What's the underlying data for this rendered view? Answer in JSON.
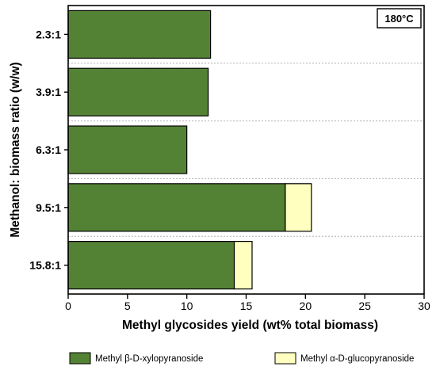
{
  "chart_data": {
    "type": "bar",
    "orientation": "horizontal",
    "stacked": true,
    "annotation": "180°C",
    "xlabel": "Methyl glycosides yield (wt% total biomass)",
    "ylabel": "Methanol: biomass ratio (w/w)",
    "categories": [
      "2.3:1",
      "3.9:1",
      "6.3:1",
      "9.5:1",
      "15.8:1"
    ],
    "xlim": [
      0,
      30
    ],
    "xticks": [
      "0",
      "5",
      "10",
      "15",
      "20",
      "25",
      "30"
    ],
    "grid": "horizontal dotted separators between categories",
    "legend_position": "bottom",
    "series": [
      {
        "name": "Methyl β-D-xylopyranoside",
        "color": "#548235",
        "values": [
          12.0,
          11.8,
          10.0,
          18.3,
          14.0
        ]
      },
      {
        "name": "Methyl α-D-glucopyranoside",
        "color": "#ffffc0",
        "values": [
          0,
          0,
          0,
          2.2,
          1.5
        ]
      }
    ]
  }
}
